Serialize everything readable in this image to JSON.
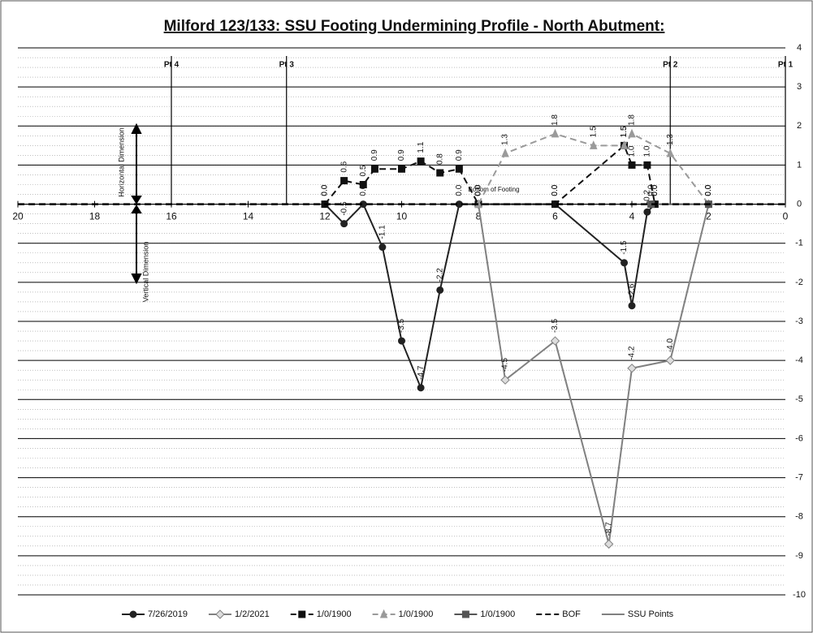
{
  "chart_data": {
    "type": "line",
    "title": "Milford 123/133: SSU Footing Undermining Profile - North Abutment:",
    "xlim": [
      20,
      0
    ],
    "xticks": [
      20,
      18,
      16,
      14,
      12,
      10,
      8,
      6,
      4,
      2,
      0
    ],
    "ylim": [
      -10,
      4
    ],
    "yticks": [
      -10,
      -9,
      -8,
      -7,
      -6,
      -5,
      -4,
      -3,
      -2,
      -1,
      0,
      1,
      2,
      3,
      4
    ],
    "grid": true,
    "minor_grid_per_major": 4,
    "legend": "bottom",
    "series": [
      {
        "name": "7/26/2019",
        "color": "#222222",
        "dash": false,
        "marker": "circle",
        "x": [
          12,
          11.5,
          11,
          10.5,
          10,
          9.5,
          9,
          8.5,
          8,
          6,
          4.2,
          4,
          3.6,
          3.4
        ],
        "values": [
          0,
          -0.5,
          0,
          -1.1,
          -3.5,
          -4.7,
          -2.2,
          0,
          0,
          0,
          -1.5,
          -2.6,
          -0.2,
          0
        ],
        "value_labels": [
          "0.0",
          "-0.5",
          "0.0",
          "-1.1",
          "-3.5",
          "-4.7",
          "-2.2",
          "0.0",
          "0.0",
          "0.0",
          "-1.5",
          "-2.6",
          "-0.2",
          "0.0"
        ]
      },
      {
        "name": "1/2/2021",
        "color": "#808080",
        "dash": false,
        "marker": "diamond",
        "x": [
          8,
          7.3,
          6,
          4.6,
          4,
          3,
          2
        ],
        "values": [
          0,
          -4.5,
          -3.5,
          -8.7,
          -4.2,
          -4.0,
          0
        ],
        "value_labels": [
          "0.0",
          "-4.5",
          "-3.5",
          "-8.7",
          "-4.2",
          "-4.0",
          "0.0"
        ]
      },
      {
        "name": "1/0/1900",
        "color": "#111111",
        "dash": true,
        "marker": "square",
        "x": [
          12,
          11.5,
          11,
          10.7,
          10,
          9.5,
          9,
          8.5,
          8,
          6,
          4.2,
          4,
          3.6,
          3.4
        ],
        "values": [
          0,
          0.6,
          0.5,
          0.9,
          0.9,
          1.1,
          0.8,
          0.9,
          0,
          0,
          1.5,
          1.0,
          1.0,
          0
        ],
        "value_labels": [
          "0.0",
          "0.6",
          "0.5",
          "0.9",
          "0.9",
          "1.1",
          "0.8",
          "0.9",
          "0.0",
          "0.0",
          "1.5",
          "1.0",
          "1.0",
          "0.0"
        ]
      },
      {
        "name": "1/0/1900",
        "color": "#9a9a9a",
        "dash": true,
        "marker": "triangle",
        "x": [
          8,
          7.3,
          6,
          5,
          4.2,
          4,
          3,
          2
        ],
        "values": [
          0,
          1.3,
          1.8,
          1.5,
          1.5,
          1.8,
          1.3,
          0
        ],
        "value_labels": [
          "0.0",
          "1.3",
          "1.8",
          "1.5",
          "1.5",
          "1.8",
          "1.3",
          "0.0"
        ]
      },
      {
        "name": "1/0/1900",
        "color": "#555555",
        "dash": false,
        "marker": "square",
        "x": [
          3.5,
          2
        ],
        "values": [
          0,
          0
        ],
        "value_labels": [
          "0.0",
          "0.0"
        ]
      },
      {
        "name": "BOF",
        "color": "#000000",
        "dash": true,
        "marker": "none",
        "width": 2.5,
        "x": [
          20,
          0
        ],
        "values": [
          0,
          0
        ]
      }
    ],
    "ssu_points": {
      "name": "SSU Points",
      "color": "#000000",
      "x": [
        16,
        13,
        3,
        0
      ],
      "labels": [
        "Pt 4",
        "Pt 3",
        "Pt 2",
        "Pt 1"
      ]
    },
    "annotations": {
      "bottom_of_footing": "Bottom of Footing",
      "horizontal": "Horizontal Dimension",
      "vertical": "Vertical Dimension"
    }
  }
}
